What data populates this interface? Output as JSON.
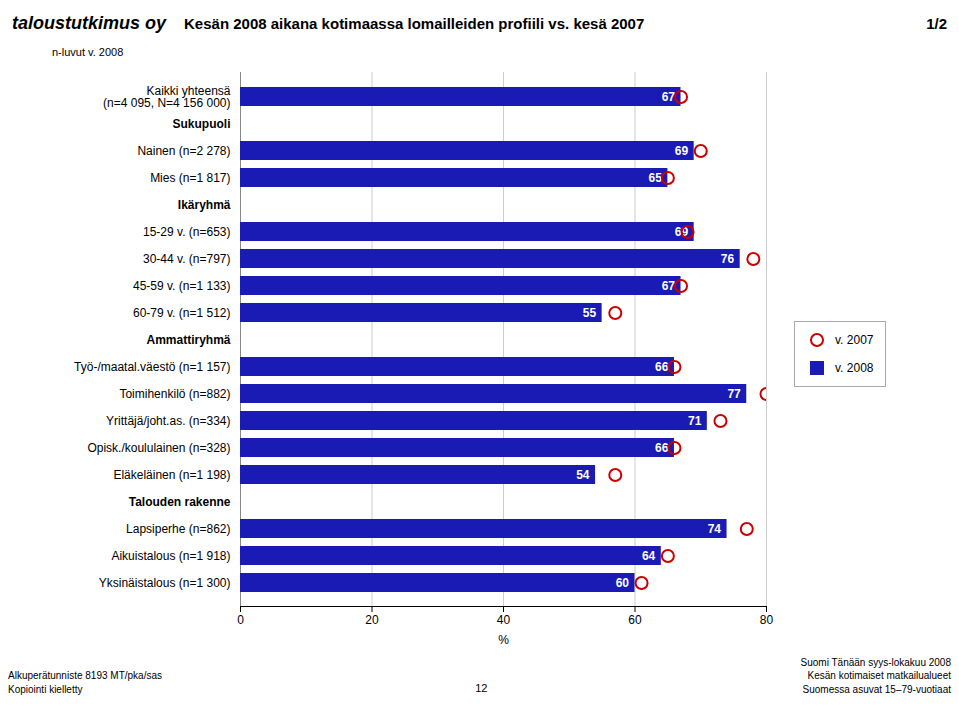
{
  "chart_data": {
    "type": "bar",
    "orientation": "horizontal",
    "title": "Kesän 2008 aikana kotimaassa lomailleiden profiili vs. kesä 2007",
    "xlabel": "%",
    "categories": [
      "Kaikki yhteensä\n(n=4 095, N=4 156 000)",
      "Sukupuoli",
      "Nainen (n=2 278)",
      "Mies (n=1 817)",
      "Ikäryhmä",
      "15-29 v. (n=653)",
      "30-44 v. (n=797)",
      "45-59 v. (n=1 133)",
      "60-79 v. (n=1 512)",
      "Ammattiryhmä",
      "Työ-/maatal.väestö (n=1 157)",
      "Toimihenkilö (n=882)",
      "Yrittäjä/joht.as. (n=334)",
      "Opisk./koululainen (n=328)",
      "Eläkeläinen (n=1 198)",
      "Talouden rakenne",
      "Lapsiperhe (n=862)",
      "Aikuistalous (n=1 918)",
      "Yksinäistalous (n=1 300)"
    ],
    "series": [
      {
        "name": "v. 2007",
        "type": "scatter",
        "marker": "circle",
        "color": "#cc0000",
        "values": [
          67,
          null,
          70,
          65,
          null,
          68,
          78,
          67,
          57,
          null,
          66,
          80,
          73,
          66,
          57,
          null,
          77,
          65,
          61
        ]
      },
      {
        "name": "v. 2008",
        "type": "bar",
        "color": "#1a1ab5",
        "values": [
          67,
          null,
          69,
          65,
          null,
          69,
          76,
          67,
          55,
          null,
          66,
          77,
          71,
          66,
          54,
          null,
          74,
          64,
          60
        ]
      }
    ],
    "xlim": [
      0,
      80
    ],
    "xticks": [
      0,
      20,
      40,
      60,
      80
    ],
    "grid": true,
    "data_labels": true,
    "legend": "right",
    "annotations": [
      "1/2",
      "taloustutkimus oy",
      "n-luvut v. 2008",
      "Alkuperätunniste 8193 MT/pka/sas",
      "Kopiointi kielletty",
      "Suomi Tänään syys-lokakuu 2008",
      "Kesän kotimaiset matkailualueet",
      "Suomessa asuvat 15–79-vuotiaat",
      "12"
    ]
  }
}
